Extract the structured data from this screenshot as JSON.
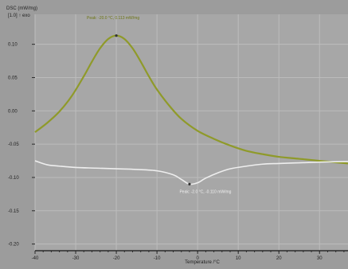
{
  "chart_data": {
    "type": "line",
    "ylabel_line1": "DSC (mW/mg)",
    "ylabel_line2": "[1.0] ↑ exo",
    "xlabel": "Temperature /°C",
    "xlim": [
      -40,
      37
    ],
    "ylim": [
      -0.21,
      0.145
    ],
    "x_ticks": [
      -40,
      -30,
      -20,
      -10,
      0,
      10,
      20,
      30
    ],
    "x_tick_labels": [
      "-40",
      "-30",
      "-20",
      "-10",
      "0",
      "10",
      "20",
      "30"
    ],
    "y_ticks": [
      0.1,
      0.05,
      0.0,
      -0.05,
      -0.1,
      -0.15,
      -0.2
    ],
    "y_tick_labels": [
      "0.10",
      "0.05",
      "0.00",
      "-0.05",
      "-0.10",
      "-0.15",
      "-0.20"
    ],
    "grid": true,
    "series": [
      {
        "color": "#8f9a2a",
        "x": [
          -40,
          -37,
          -34,
          -31,
          -28,
          -26,
          -24,
          -22,
          -20,
          -18,
          -16,
          -14,
          -12,
          -10,
          -7,
          -4,
          0,
          4,
          8,
          12,
          16,
          20,
          25,
          30,
          37
        ],
        "y": [
          -0.032,
          -0.018,
          -0.001,
          0.022,
          0.052,
          0.074,
          0.094,
          0.108,
          0.113,
          0.108,
          0.094,
          0.074,
          0.052,
          0.032,
          0.008,
          -0.012,
          -0.03,
          -0.042,
          -0.052,
          -0.06,
          -0.065,
          -0.069,
          -0.072,
          -0.075,
          -0.079
        ],
        "peak": {
          "x": -20,
          "y": 0.113,
          "label": "Peak: -20.0 °C, 0.113 mW/mg"
        }
      },
      {
        "color": "#eeeeee",
        "x": [
          -40,
          -37,
          -34,
          -30,
          -25,
          -20,
          -15,
          -10,
          -6,
          -4,
          -2,
          0,
          2,
          5,
          8,
          12,
          16,
          20,
          25,
          30,
          37
        ],
        "y": [
          -0.075,
          -0.081,
          -0.083,
          -0.085,
          -0.086,
          -0.087,
          -0.088,
          -0.09,
          -0.096,
          -0.103,
          -0.11,
          -0.108,
          -0.101,
          -0.093,
          -0.087,
          -0.083,
          -0.08,
          -0.079,
          -0.078,
          -0.077,
          -0.076
        ],
        "peak": {
          "x": -2,
          "y": -0.11,
          "label": "Peak: -2.0 °C, -0.110 mW/mg"
        }
      }
    ]
  }
}
